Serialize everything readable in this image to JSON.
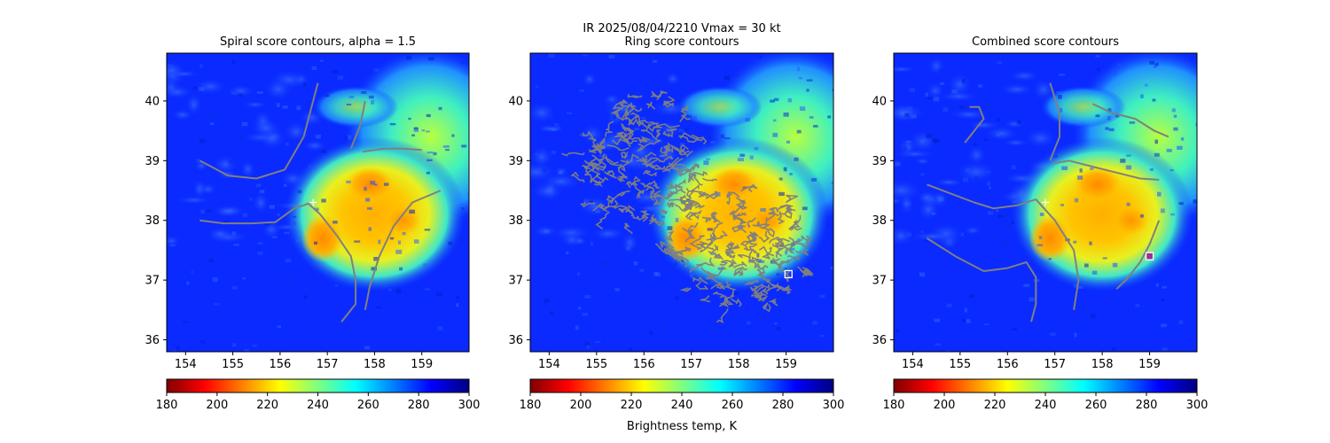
{
  "figure": {
    "suptitle_line1": "IR  2025/08/04/2210    Vmax = 30 kt",
    "colorbar_label": "Brightness temp, K",
    "colormap": "jet (reversed)",
    "colors": {
      "contour": "#808080",
      "background": "#0a2aff"
    }
  },
  "chart_data": [
    {
      "type": "heatmap",
      "title": "Spiral score contours, alpha =  1.5",
      "xlim": [
        153.6,
        160.0
      ],
      "ylim": [
        35.8,
        40.8
      ],
      "xticks": [
        "154",
        "155",
        "156",
        "157",
        "158",
        "159"
      ],
      "yticks": [
        "36",
        "37",
        "38",
        "39",
        "40"
      ],
      "colorbar": {
        "range": [
          180,
          300
        ],
        "ticks": [
          "180",
          "200",
          "220",
          "240",
          "260",
          "280",
          "300"
        ]
      },
      "markers": [
        {
          "type": "plus",
          "x": 156.7,
          "y": 38.3,
          "color": "#ffffff"
        }
      ],
      "contours": [
        [
          [
            154.3,
            39.0
          ],
          [
            154.9,
            38.75
          ],
          [
            155.5,
            38.7
          ],
          [
            156.1,
            38.85
          ],
          [
            156.5,
            39.4
          ],
          [
            156.8,
            40.3
          ]
        ],
        [
          [
            154.3,
            38.0
          ],
          [
            154.8,
            37.95
          ],
          [
            155.4,
            37.95
          ],
          [
            155.9,
            37.97
          ],
          [
            156.3,
            38.2
          ],
          [
            156.6,
            38.28
          ],
          [
            156.85,
            38.1
          ],
          [
            157.2,
            37.75
          ],
          [
            157.5,
            37.4
          ],
          [
            157.6,
            37.0
          ],
          [
            157.6,
            36.6
          ],
          [
            157.3,
            36.3
          ]
        ],
        [
          [
            157.75,
            39.15
          ],
          [
            158.2,
            39.2
          ],
          [
            158.6,
            39.2
          ],
          [
            159.0,
            39.18
          ]
        ],
        [
          [
            157.8,
            40.0
          ],
          [
            157.7,
            39.6
          ],
          [
            157.5,
            39.2
          ]
        ],
        [
          [
            159.4,
            38.5
          ],
          [
            158.8,
            38.3
          ],
          [
            158.4,
            37.9
          ],
          [
            158.1,
            37.4
          ],
          [
            157.9,
            36.9
          ],
          [
            157.8,
            36.5
          ]
        ]
      ]
    },
    {
      "type": "heatmap",
      "title": "Ring score contours",
      "xlim": [
        153.6,
        160.0
      ],
      "ylim": [
        35.8,
        40.8
      ],
      "xticks": [
        "154",
        "155",
        "156",
        "157",
        "158",
        "159"
      ],
      "yticks": [
        "36",
        "37",
        "38",
        "39",
        "40"
      ],
      "colorbar": {
        "range": [
          180,
          300
        ],
        "ticks": [
          "180",
          "200",
          "220",
          "240",
          "260",
          "280",
          "300"
        ]
      },
      "markers": [
        {
          "type": "square",
          "x": 159.05,
          "y": 37.1,
          "color": "#ffffff"
        }
      ],
      "contour_regions": [
        {
          "kind": "dense-ring-contours",
          "center": [
            158.0,
            37.6
          ],
          "radius_lon": 1.55,
          "radius_lat": 1.1
        },
        {
          "kind": "dense-ring-contours",
          "center": [
            156.0,
            39.0
          ],
          "radius_lon": 1.35,
          "radius_lat": 1.15
        }
      ]
    },
    {
      "type": "heatmap",
      "title": "Combined score contours",
      "xlim": [
        153.6,
        160.0
      ],
      "ylim": [
        35.8,
        40.8
      ],
      "xticks": [
        "154",
        "155",
        "156",
        "157",
        "158",
        "159"
      ],
      "yticks": [
        "36",
        "37",
        "38",
        "39",
        "40"
      ],
      "colorbar": {
        "range": [
          180,
          300
        ],
        "ticks": [
          "180",
          "200",
          "220",
          "240",
          "260",
          "280",
          "300"
        ]
      },
      "markers": [
        {
          "type": "square",
          "x": 159.0,
          "y": 37.4,
          "color": "#9b2f8f"
        },
        {
          "type": "plus",
          "x": 156.8,
          "y": 38.3,
          "color": "#ffffff"
        }
      ],
      "contours": [
        [
          [
            154.3,
            38.6
          ],
          [
            154.8,
            38.45
          ],
          [
            155.3,
            38.3
          ],
          [
            155.7,
            38.2
          ],
          [
            156.2,
            38.25
          ],
          [
            156.6,
            38.35
          ],
          [
            157.0,
            38.0
          ],
          [
            157.4,
            37.5
          ],
          [
            157.5,
            37.0
          ],
          [
            157.4,
            36.5
          ]
        ],
        [
          [
            154.3,
            37.7
          ],
          [
            154.9,
            37.4
          ],
          [
            155.5,
            37.15
          ],
          [
            156.0,
            37.2
          ],
          [
            156.4,
            37.3
          ],
          [
            156.6,
            37.05
          ],
          [
            156.6,
            36.6
          ],
          [
            156.5,
            36.3
          ]
        ],
        [
          [
            155.1,
            39.3
          ],
          [
            155.3,
            39.5
          ],
          [
            155.5,
            39.7
          ],
          [
            155.4,
            39.9
          ],
          [
            155.2,
            39.9
          ]
        ],
        [
          [
            156.9,
            40.3
          ],
          [
            157.1,
            39.8
          ],
          [
            157.1,
            39.4
          ],
          [
            156.9,
            39.0
          ]
        ],
        [
          [
            156.95,
            38.95
          ],
          [
            157.3,
            39.0
          ],
          [
            157.8,
            38.9
          ],
          [
            158.3,
            38.8
          ],
          [
            158.8,
            38.7
          ],
          [
            159.2,
            38.68
          ]
        ],
        [
          [
            157.8,
            39.95
          ],
          [
            158.2,
            39.8
          ],
          [
            158.7,
            39.7
          ],
          [
            159.1,
            39.5
          ],
          [
            159.4,
            39.4
          ]
        ],
        [
          [
            159.2,
            38.0
          ],
          [
            159.0,
            37.6
          ],
          [
            158.8,
            37.3
          ],
          [
            158.5,
            37.0
          ],
          [
            158.3,
            36.85
          ]
        ]
      ]
    }
  ]
}
